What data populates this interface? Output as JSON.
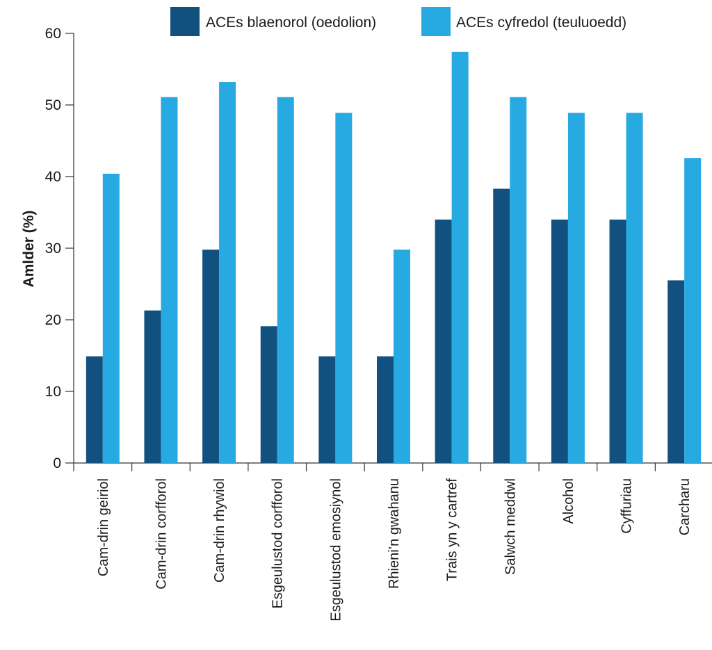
{
  "chart_data": {
    "type": "bar",
    "title": "",
    "xlabel": "",
    "ylabel": "Amlder (%)",
    "ylim": [
      0,
      60
    ],
    "yticks": [
      0,
      10,
      20,
      30,
      40,
      50,
      60
    ],
    "grid": false,
    "legend_position": "top",
    "categories": [
      "Cam-drin geiriol",
      "Cam-drin corfforol",
      "Cam-drin rhywiol",
      "Esgeulustod corfforol",
      "Esgeulustod emosiynol",
      "Rhieni’n gwahanu",
      "Trais yn y cartref",
      "Salwch meddwl",
      "Alcohol",
      "Cyffuriau",
      "Carcharu"
    ],
    "series": [
      {
        "name": "ACEs blaenorol (oedolion)",
        "color": "#12507f",
        "values": [
          14.9,
          21.3,
          29.8,
          19.1,
          14.9,
          14.9,
          34.0,
          38.3,
          34.0,
          34.0,
          25.5
        ]
      },
      {
        "name": "ACEs cyfredol (teuluoedd)",
        "color": "#27a9e1",
        "values": [
          40.4,
          51.1,
          53.2,
          51.1,
          48.9,
          29.8,
          57.4,
          51.1,
          48.9,
          48.9,
          42.6
        ]
      }
    ]
  }
}
